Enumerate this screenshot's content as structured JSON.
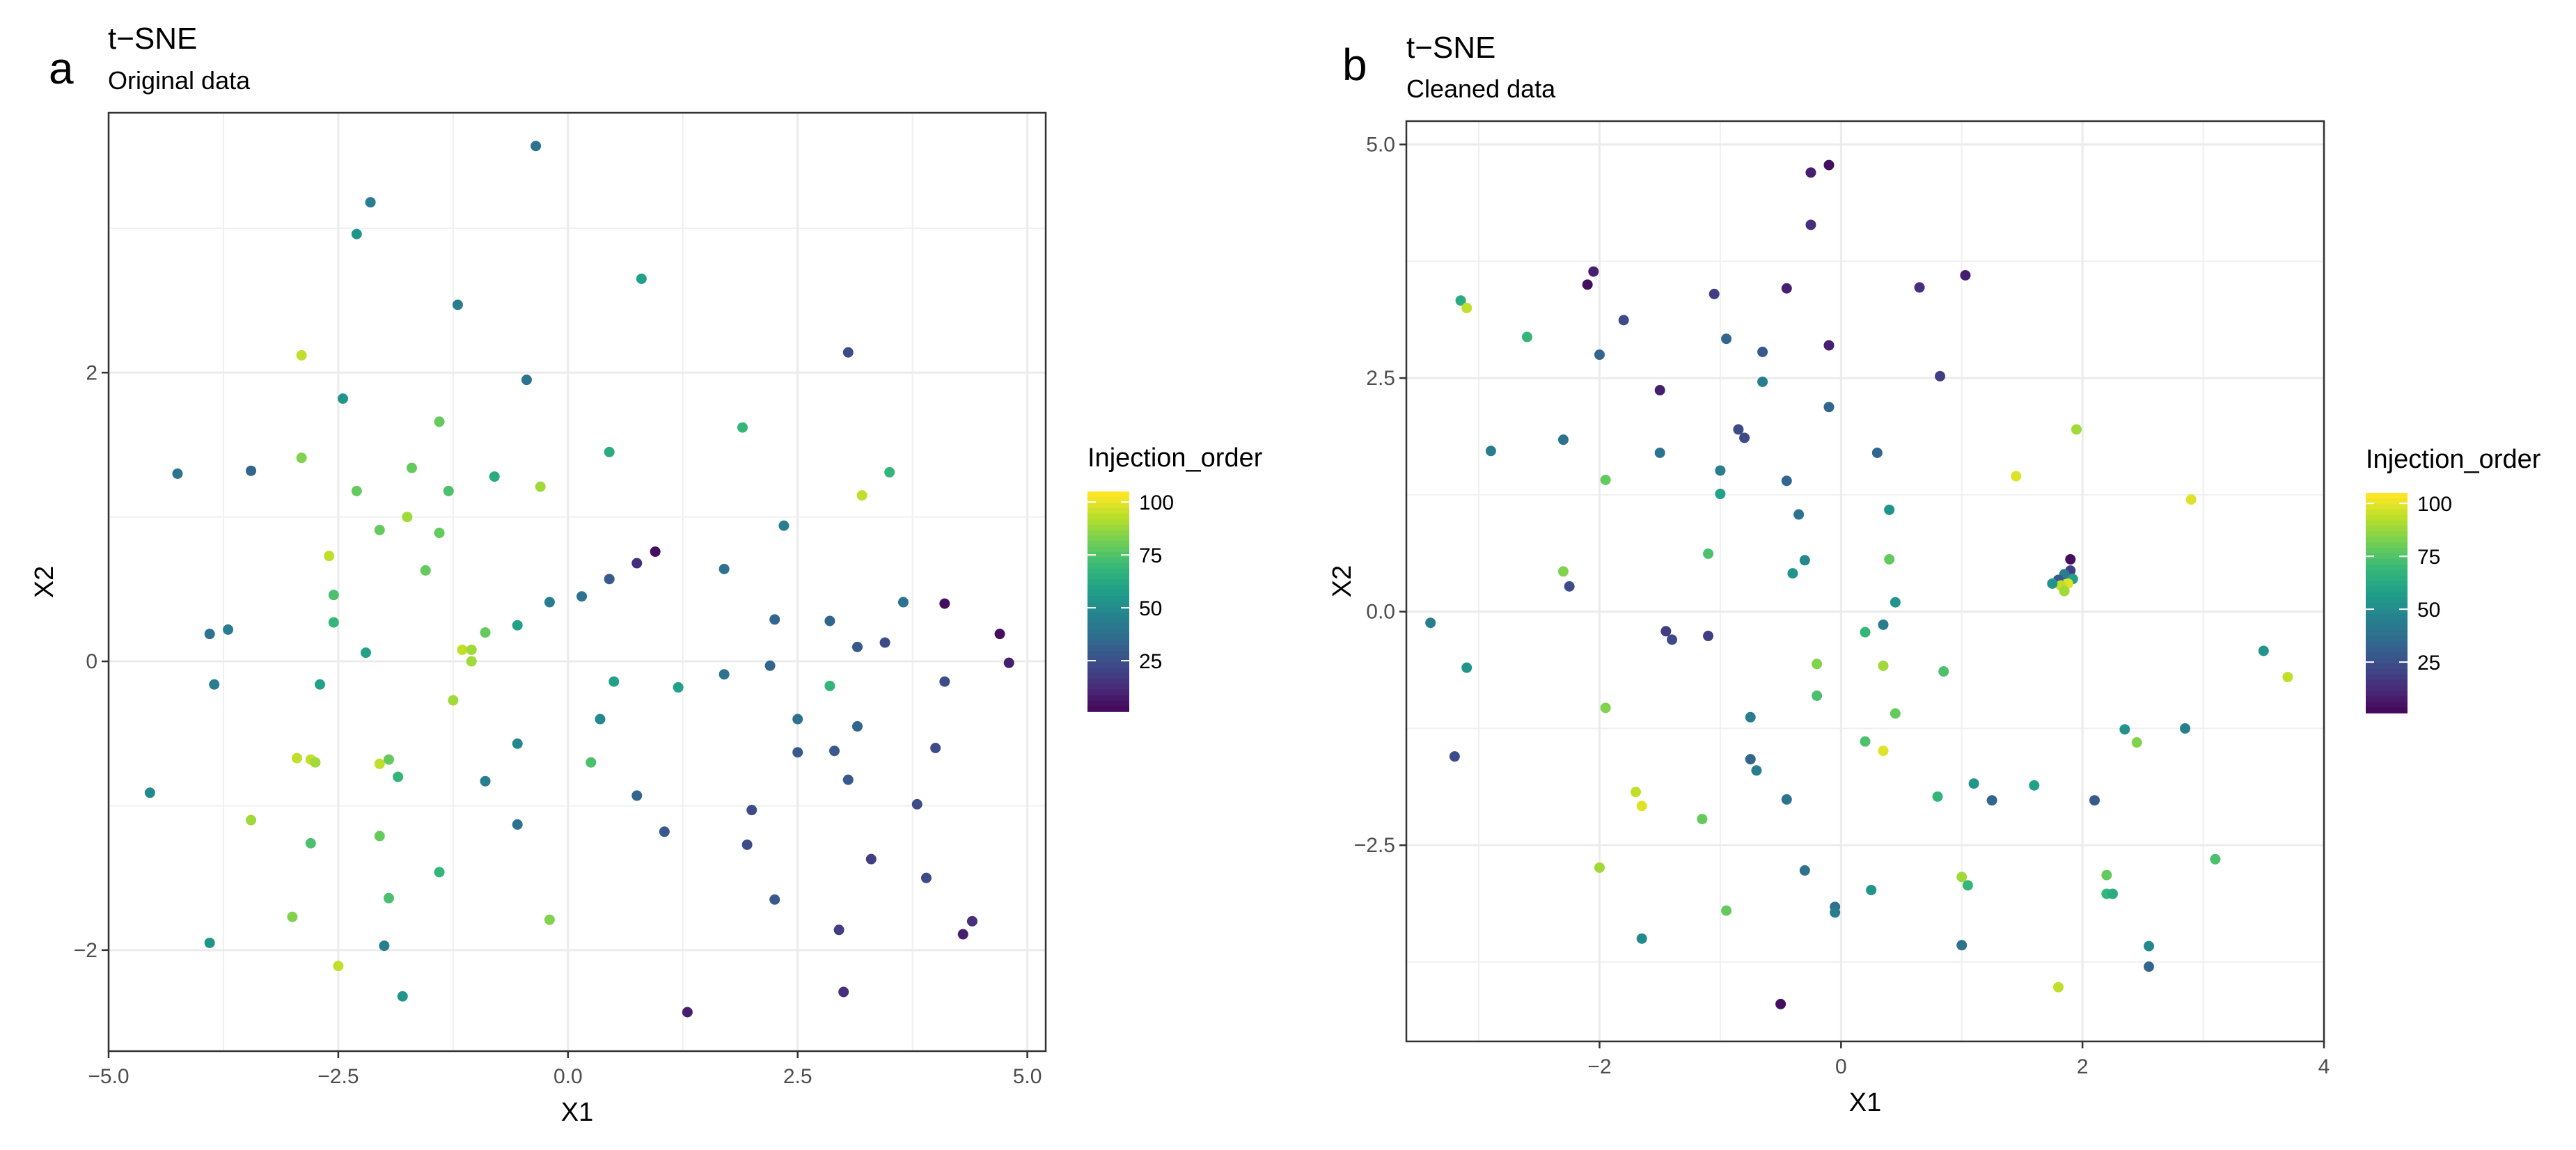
{
  "chart_data": [
    {
      "type": "scatter",
      "panel_label": "a",
      "title": "t−SNE",
      "subtitle": "Original data",
      "xlabel": "X1",
      "ylabel": "X2",
      "xlim": [
        -5.0,
        5.2
      ],
      "ylim": [
        -2.7,
        3.8
      ],
      "xticks": [
        -5.0,
        -2.5,
        0.0,
        2.5,
        5.0
      ],
      "xtick_labels": [
        "−5.0",
        "−2.5",
        "0.0",
        "2.5",
        "5.0"
      ],
      "yticks": [
        -2,
        0,
        2
      ],
      "ytick_labels": [
        "−2",
        "0",
        "2"
      ],
      "grid": true,
      "color_variable": "Injection_order",
      "points": [
        {
          "x": -0.35,
          "y": 3.57,
          "c": 40
        },
        {
          "x": -2.15,
          "y": 3.18,
          "c": 45
        },
        {
          "x": -2.3,
          "y": 2.96,
          "c": 55
        },
        {
          "x": 0.8,
          "y": 2.65,
          "c": 60
        },
        {
          "x": -1.2,
          "y": 2.47,
          "c": 45
        },
        {
          "x": -2.9,
          "y": 2.12,
          "c": 95
        },
        {
          "x": 3.05,
          "y": 2.14,
          "c": 25
        },
        {
          "x": -0.45,
          "y": 1.95,
          "c": 40
        },
        {
          "x": -2.45,
          "y": 1.82,
          "c": 55
        },
        {
          "x": -1.4,
          "y": 1.66,
          "c": 80
        },
        {
          "x": 1.9,
          "y": 1.62,
          "c": 70
        },
        {
          "x": -2.9,
          "y": 1.41,
          "c": 85
        },
        {
          "x": 0.45,
          "y": 1.45,
          "c": 65
        },
        {
          "x": -1.7,
          "y": 1.34,
          "c": 80
        },
        {
          "x": 3.5,
          "y": 1.31,
          "c": 70
        },
        {
          "x": -4.25,
          "y": 1.3,
          "c": 40
        },
        {
          "x": -3.45,
          "y": 1.32,
          "c": 35
        },
        {
          "x": -0.8,
          "y": 1.28,
          "c": 65
        },
        {
          "x": -0.3,
          "y": 1.21,
          "c": 90
        },
        {
          "x": -2.3,
          "y": 1.18,
          "c": 80
        },
        {
          "x": -1.3,
          "y": 1.18,
          "c": 75
        },
        {
          "x": 3.2,
          "y": 1.15,
          "c": 95
        },
        {
          "x": -1.75,
          "y": 1.0,
          "c": 90
        },
        {
          "x": 2.35,
          "y": 0.94,
          "c": 45
        },
        {
          "x": -2.05,
          "y": 0.91,
          "c": 80
        },
        {
          "x": -1.4,
          "y": 0.89,
          "c": 80
        },
        {
          "x": 0.95,
          "y": 0.76,
          "c": 5
        },
        {
          "x": -2.6,
          "y": 0.73,
          "c": 95
        },
        {
          "x": 1.7,
          "y": 0.64,
          "c": 40
        },
        {
          "x": -1.55,
          "y": 0.63,
          "c": 80
        },
        {
          "x": 0.45,
          "y": 0.57,
          "c": 30
        },
        {
          "x": -2.55,
          "y": 0.46,
          "c": 75
        },
        {
          "x": 0.15,
          "y": 0.45,
          "c": 40
        },
        {
          "x": 3.65,
          "y": 0.41,
          "c": 40
        },
        {
          "x": -0.2,
          "y": 0.41,
          "c": 45
        },
        {
          "x": 4.1,
          "y": 0.4,
          "c": 5
        },
        {
          "x": 0.75,
          "y": 0.68,
          "c": 15
        },
        {
          "x": 2.25,
          "y": 0.29,
          "c": 35
        },
        {
          "x": 2.85,
          "y": 0.28,
          "c": 35
        },
        {
          "x": -2.55,
          "y": 0.27,
          "c": 70
        },
        {
          "x": -0.55,
          "y": 0.25,
          "c": 60
        },
        {
          "x": -3.7,
          "y": 0.22,
          "c": 45
        },
        {
          "x": -3.9,
          "y": 0.19,
          "c": 40
        },
        {
          "x": -0.9,
          "y": 0.2,
          "c": 80
        },
        {
          "x": 4.7,
          "y": 0.19,
          "c": 5
        },
        {
          "x": 3.15,
          "y": 0.1,
          "c": 30
        },
        {
          "x": 3.45,
          "y": 0.13,
          "c": 25
        },
        {
          "x": -1.15,
          "y": 0.08,
          "c": 95
        },
        {
          "x": -1.05,
          "y": 0.08,
          "c": 90
        },
        {
          "x": -2.2,
          "y": 0.06,
          "c": 60
        },
        {
          "x": -1.05,
          "y": 0.0,
          "c": 90
        },
        {
          "x": 2.2,
          "y": -0.03,
          "c": 35
        },
        {
          "x": 4.8,
          "y": -0.01,
          "c": 10
        },
        {
          "x": 1.7,
          "y": -0.09,
          "c": 40
        },
        {
          "x": -3.85,
          "y": -0.16,
          "c": 45
        },
        {
          "x": -2.7,
          "y": -0.16,
          "c": 60
        },
        {
          "x": 0.5,
          "y": -0.14,
          "c": 60
        },
        {
          "x": 4.1,
          "y": -0.14,
          "c": 25
        },
        {
          "x": 1.2,
          "y": -0.18,
          "c": 60
        },
        {
          "x": 2.85,
          "y": -0.17,
          "c": 70
        },
        {
          "x": -1.25,
          "y": -0.27,
          "c": 90
        },
        {
          "x": 0.35,
          "y": -0.4,
          "c": 50
        },
        {
          "x": 2.5,
          "y": -0.4,
          "c": 40
        },
        {
          "x": 3.15,
          "y": -0.45,
          "c": 35
        },
        {
          "x": -0.55,
          "y": -0.57,
          "c": 50
        },
        {
          "x": 2.5,
          "y": -0.63,
          "c": 30
        },
        {
          "x": 2.9,
          "y": -0.62,
          "c": 30
        },
        {
          "x": 4.0,
          "y": -0.6,
          "c": 25
        },
        {
          "x": -2.95,
          "y": -0.67,
          "c": 95
        },
        {
          "x": -2.8,
          "y": -0.68,
          "c": 95
        },
        {
          "x": -2.75,
          "y": -0.7,
          "c": 90
        },
        {
          "x": -1.95,
          "y": -0.68,
          "c": 80
        },
        {
          "x": 0.25,
          "y": -0.7,
          "c": 75
        },
        {
          "x": -2.05,
          "y": -0.71,
          "c": 95
        },
        {
          "x": -1.85,
          "y": -0.8,
          "c": 70
        },
        {
          "x": -0.9,
          "y": -0.83,
          "c": 45
        },
        {
          "x": 3.05,
          "y": -0.82,
          "c": 30
        },
        {
          "x": -4.55,
          "y": -0.91,
          "c": 50
        },
        {
          "x": 0.75,
          "y": -0.93,
          "c": 35
        },
        {
          "x": 3.8,
          "y": -0.99,
          "c": 25
        },
        {
          "x": 2.0,
          "y": -1.03,
          "c": 25
        },
        {
          "x": -3.45,
          "y": -1.1,
          "c": 90
        },
        {
          "x": -0.55,
          "y": -1.13,
          "c": 40
        },
        {
          "x": 1.05,
          "y": -1.18,
          "c": 30
        },
        {
          "x": -2.05,
          "y": -1.21,
          "c": 80
        },
        {
          "x": -2.8,
          "y": -1.26,
          "c": 75
        },
        {
          "x": 1.95,
          "y": -1.27,
          "c": 25
        },
        {
          "x": 3.3,
          "y": -1.37,
          "c": 20
        },
        {
          "x": -1.4,
          "y": -1.46,
          "c": 70
        },
        {
          "x": 3.9,
          "y": -1.5,
          "c": 25
        },
        {
          "x": -1.95,
          "y": -1.64,
          "c": 75
        },
        {
          "x": 2.25,
          "y": -1.65,
          "c": 30
        },
        {
          "x": -3.0,
          "y": -1.77,
          "c": 85
        },
        {
          "x": -0.2,
          "y": -1.79,
          "c": 85
        },
        {
          "x": 4.4,
          "y": -1.8,
          "c": 15
        },
        {
          "x": 2.95,
          "y": -1.86,
          "c": 20
        },
        {
          "x": 4.3,
          "y": -1.89,
          "c": 10
        },
        {
          "x": -3.9,
          "y": -1.95,
          "c": 55
        },
        {
          "x": -2.0,
          "y": -1.97,
          "c": 45
        },
        {
          "x": -2.5,
          "y": -2.11,
          "c": 95
        },
        {
          "x": 3.0,
          "y": -2.29,
          "c": 15
        },
        {
          "x": -1.8,
          "y": -2.32,
          "c": 55
        },
        {
          "x": 1.3,
          "y": -2.43,
          "c": 10
        }
      ]
    },
    {
      "type": "scatter",
      "panel_label": "b",
      "title": "t−SNE",
      "subtitle": "Cleaned data",
      "xlabel": "X1",
      "ylabel": "X2",
      "xlim": [
        -3.6,
        4.0
      ],
      "ylim": [
        -4.6,
        5.25
      ],
      "xticks": [
        -2,
        0,
        2,
        4
      ],
      "xtick_labels": [
        "−2",
        "0",
        "2",
        "4"
      ],
      "yticks": [
        -2.5,
        0.0,
        2.5,
        5.0
      ],
      "ytick_labels": [
        "−2.5",
        "0.0",
        "2.5",
        "5.0"
      ],
      "grid": true,
      "color_variable": "Injection_order",
      "points": [
        {
          "x": -0.1,
          "y": 4.78,
          "c": 5
        },
        {
          "x": -0.25,
          "y": 4.7,
          "c": 10
        },
        {
          "x": -0.25,
          "y": 4.14,
          "c": 15
        },
        {
          "x": -2.05,
          "y": 3.64,
          "c": 10
        },
        {
          "x": 1.03,
          "y": 3.6,
          "c": 10
        },
        {
          "x": -2.1,
          "y": 3.5,
          "c": 5
        },
        {
          "x": 0.65,
          "y": 3.47,
          "c": 15
        },
        {
          "x": -0.45,
          "y": 3.46,
          "c": 10
        },
        {
          "x": -1.05,
          "y": 3.4,
          "c": 20
        },
        {
          "x": -3.15,
          "y": 3.33,
          "c": 65
        },
        {
          "x": -3.1,
          "y": 3.25,
          "c": 95
        },
        {
          "x": -1.8,
          "y": 3.12,
          "c": 25
        },
        {
          "x": -2.6,
          "y": 2.94,
          "c": 70
        },
        {
          "x": -0.95,
          "y": 2.92,
          "c": 35
        },
        {
          "x": -0.1,
          "y": 2.85,
          "c": 10
        },
        {
          "x": -0.65,
          "y": 2.78,
          "c": 30
        },
        {
          "x": -2.0,
          "y": 2.75,
          "c": 35
        },
        {
          "x": 0.82,
          "y": 2.52,
          "c": 20
        },
        {
          "x": -0.65,
          "y": 2.46,
          "c": 45
        },
        {
          "x": -1.5,
          "y": 2.37,
          "c": 10
        },
        {
          "x": -0.1,
          "y": 2.19,
          "c": 35
        },
        {
          "x": 1.95,
          "y": 1.95,
          "c": 90
        },
        {
          "x": -0.85,
          "y": 1.95,
          "c": 25
        },
        {
          "x": -0.8,
          "y": 1.86,
          "c": 25
        },
        {
          "x": -2.3,
          "y": 1.84,
          "c": 40
        },
        {
          "x": -2.9,
          "y": 1.72,
          "c": 45
        },
        {
          "x": -1.5,
          "y": 1.7,
          "c": 40
        },
        {
          "x": 0.3,
          "y": 1.7,
          "c": 35
        },
        {
          "x": 2.9,
          "y": 1.2,
          "c": 100
        },
        {
          "x": 1.45,
          "y": 1.45,
          "c": 100
        },
        {
          "x": -1.95,
          "y": 1.41,
          "c": 80
        },
        {
          "x": -0.45,
          "y": 1.4,
          "c": 35
        },
        {
          "x": -1.0,
          "y": 1.26,
          "c": 60
        },
        {
          "x": -1.0,
          "y": 1.51,
          "c": 45
        },
        {
          "x": 0.4,
          "y": 1.09,
          "c": 55
        },
        {
          "x": -0.35,
          "y": 1.04,
          "c": 40
        },
        {
          "x": -1.1,
          "y": 0.62,
          "c": 75
        },
        {
          "x": 0.4,
          "y": 0.56,
          "c": 80
        },
        {
          "x": -0.3,
          "y": 0.55,
          "c": 50
        },
        {
          "x": 1.9,
          "y": 0.56,
          "c": 5
        },
        {
          "x": -2.3,
          "y": 0.43,
          "c": 85
        },
        {
          "x": -0.4,
          "y": 0.41,
          "c": 55
        },
        {
          "x": 1.9,
          "y": 0.44,
          "c": 20
        },
        {
          "x": 1.85,
          "y": 0.4,
          "c": 45
        },
        {
          "x": 1.8,
          "y": 0.34,
          "c": 30
        },
        {
          "x": 1.92,
          "y": 0.35,
          "c": 60
        },
        {
          "x": 1.88,
          "y": 0.3,
          "c": 100
        },
        {
          "x": 1.82,
          "y": 0.28,
          "c": 95
        },
        {
          "x": 1.75,
          "y": 0.3,
          "c": 55
        },
        {
          "x": 1.85,
          "y": 0.22,
          "c": 90
        },
        {
          "x": -2.25,
          "y": 0.27,
          "c": 25
        },
        {
          "x": 0.45,
          "y": 0.1,
          "c": 55
        },
        {
          "x": -3.4,
          "y": -0.12,
          "c": 45
        },
        {
          "x": 0.35,
          "y": -0.14,
          "c": 45
        },
        {
          "x": -1.45,
          "y": -0.21,
          "c": 20
        },
        {
          "x": 0.2,
          "y": -0.22,
          "c": 70
        },
        {
          "x": -1.1,
          "y": -0.26,
          "c": 20
        },
        {
          "x": -1.4,
          "y": -0.3,
          "c": 25
        },
        {
          "x": 3.5,
          "y": -0.42,
          "c": 55
        },
        {
          "x": -0.2,
          "y": -0.56,
          "c": 85
        },
        {
          "x": 0.35,
          "y": -0.58,
          "c": 90
        },
        {
          "x": -3.1,
          "y": -0.6,
          "c": 55
        },
        {
          "x": 0.85,
          "y": -0.64,
          "c": 75
        },
        {
          "x": 3.7,
          "y": -0.7,
          "c": 95
        },
        {
          "x": -0.2,
          "y": -0.9,
          "c": 75
        },
        {
          "x": -1.95,
          "y": -1.03,
          "c": 85
        },
        {
          "x": 0.45,
          "y": -1.09,
          "c": 80
        },
        {
          "x": -0.75,
          "y": -1.13,
          "c": 45
        },
        {
          "x": 2.35,
          "y": -1.26,
          "c": 55
        },
        {
          "x": 2.85,
          "y": -1.25,
          "c": 45
        },
        {
          "x": 0.2,
          "y": -1.39,
          "c": 75
        },
        {
          "x": 2.45,
          "y": -1.4,
          "c": 85
        },
        {
          "x": 0.35,
          "y": -1.49,
          "c": 100
        },
        {
          "x": -3.2,
          "y": -1.55,
          "c": 25
        },
        {
          "x": -0.75,
          "y": -1.58,
          "c": 35
        },
        {
          "x": -0.7,
          "y": -1.7,
          "c": 45
        },
        {
          "x": 1.1,
          "y": -1.84,
          "c": 55
        },
        {
          "x": 1.6,
          "y": -1.86,
          "c": 60
        },
        {
          "x": -1.7,
          "y": -1.93,
          "c": 95
        },
        {
          "x": 0.8,
          "y": -1.98,
          "c": 70
        },
        {
          "x": 1.25,
          "y": -2.02,
          "c": 35
        },
        {
          "x": 2.1,
          "y": -2.02,
          "c": 30
        },
        {
          "x": -0.45,
          "y": -2.01,
          "c": 40
        },
        {
          "x": -1.65,
          "y": -2.08,
          "c": 100
        },
        {
          "x": -1.15,
          "y": -2.22,
          "c": 80
        },
        {
          "x": -2.0,
          "y": -2.74,
          "c": 90
        },
        {
          "x": -0.3,
          "y": -2.77,
          "c": 40
        },
        {
          "x": 3.1,
          "y": -2.65,
          "c": 75
        },
        {
          "x": 1.0,
          "y": -2.84,
          "c": 90
        },
        {
          "x": 2.2,
          "y": -2.82,
          "c": 80
        },
        {
          "x": 1.05,
          "y": -2.93,
          "c": 70
        },
        {
          "x": 0.25,
          "y": -2.98,
          "c": 55
        },
        {
          "x": 2.2,
          "y": -3.02,
          "c": 70
        },
        {
          "x": 2.25,
          "y": -3.02,
          "c": 65
        },
        {
          "x": -0.05,
          "y": -3.16,
          "c": 40
        },
        {
          "x": -0.95,
          "y": -3.2,
          "c": 80
        },
        {
          "x": -0.05,
          "y": -3.22,
          "c": 45
        },
        {
          "x": -1.65,
          "y": -3.5,
          "c": 50
        },
        {
          "x": 1.0,
          "y": -3.57,
          "c": 40
        },
        {
          "x": 2.55,
          "y": -3.58,
          "c": 50
        },
        {
          "x": 1.8,
          "y": -4.02,
          "c": 95
        },
        {
          "x": 2.55,
          "y": -3.8,
          "c": 35
        },
        {
          "x": -0.5,
          "y": -4.2,
          "c": 5
        }
      ]
    }
  ],
  "legend": {
    "title": "Injection_order",
    "range": [
      1,
      105
    ],
    "breaks": [
      25,
      50,
      75,
      100
    ],
    "break_labels": [
      "25",
      "50",
      "75",
      "100"
    ],
    "colors": [
      "#440154",
      "#482878",
      "#3e4a89",
      "#31688e",
      "#26828e",
      "#1f9e89",
      "#35b779",
      "#6ece58",
      "#b5de2b",
      "#fde725"
    ]
  }
}
